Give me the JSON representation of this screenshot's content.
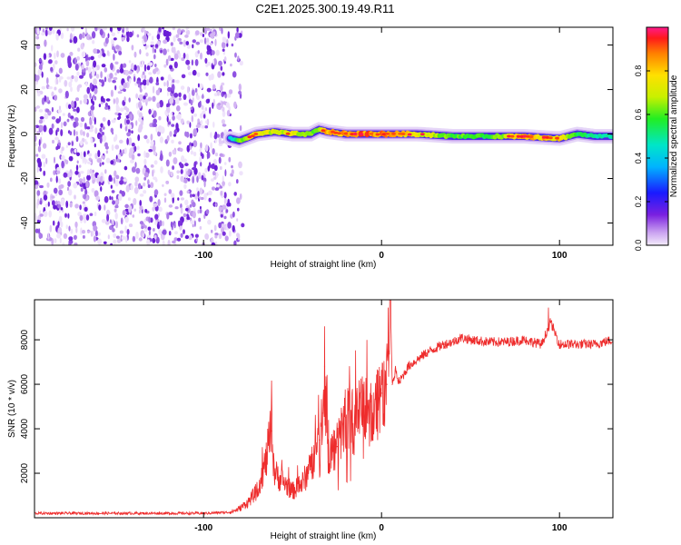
{
  "title": "C2E1.2025.300.19.49.R11",
  "chart_data": [
    {
      "type": "heatmap",
      "xlabel": "Height of straight line (km)",
      "ylabel": "Frequency (Hz)",
      "xlim": [
        -195,
        130
      ],
      "ylim": [
        -50,
        48
      ],
      "xticks": [
        -100,
        0,
        100
      ],
      "yticks": [
        -40,
        -20,
        0,
        20,
        40
      ],
      "colorbar": {
        "label": "Normalized spectral amplitude",
        "ticks": [
          "0.0",
          "0.2",
          "0.4",
          "0.6",
          "0.8"
        ],
        "range": [
          0,
          1
        ]
      },
      "noise_region_x": [
        -195,
        -82
      ],
      "signal_trace": {
        "x": [
          -85,
          -80,
          -70,
          -60,
          -50,
          -40,
          -35,
          -30,
          -20,
          -10,
          0,
          10,
          20,
          40,
          60,
          80,
          100,
          110,
          120,
          130
        ],
        "freq": [
          -2,
          -3,
          0,
          1,
          0,
          0,
          2,
          1,
          0,
          0,
          0,
          0,
          0,
          -1,
          -1,
          -1,
          -2,
          0,
          -1,
          -1
        ],
        "amplitude": [
          0.3,
          0.6,
          0.9,
          0.7,
          0.8,
          0.6,
          0.7,
          0.95,
          0.95,
          1.0,
          1.0,
          0.95,
          0.8,
          0.6,
          0.55,
          0.9,
          0.85,
          0.5,
          0.45,
          0.4
        ]
      }
    },
    {
      "type": "line",
      "xlabel": "Height of straight line (km)",
      "ylabel": "SNR (10 * v/v)",
      "xlim": [
        -195,
        130
      ],
      "ylim": [
        0,
        9800
      ],
      "xticks": [
        -100,
        0,
        100
      ],
      "yticks": [
        2000,
        4000,
        6000,
        8000
      ],
      "color": "#ee2c2c",
      "series": [
        {
          "name": "SNR",
          "x": [
            -195,
            -150,
            -100,
            -85,
            -80,
            -75,
            -70,
            -65,
            -62,
            -60,
            -55,
            -50,
            -45,
            -40,
            -35,
            -33,
            -32,
            -30,
            -28,
            -25,
            -20,
            -15,
            -10,
            -5,
            -2,
            0,
            3,
            5,
            6,
            8,
            10,
            15,
            20,
            25,
            30,
            35,
            40,
            45,
            50,
            60,
            70,
            80,
            90,
            95,
            100,
            110,
            120,
            130
          ],
          "y": [
            200,
            200,
            200,
            250,
            400,
            700,
            1200,
            2500,
            3900,
            2000,
            1600,
            1200,
            1500,
            2200,
            3500,
            4700,
            6800,
            2500,
            3000,
            3200,
            4500,
            4300,
            5000,
            4700,
            5400,
            5600,
            6000,
            9800,
            6000,
            6600,
            6100,
            6800,
            7100,
            7400,
            7600,
            7800,
            7900,
            8100,
            8000,
            7900,
            7900,
            8000,
            7800,
            8800,
            7800,
            7800,
            7800,
            8000
          ]
        }
      ]
    }
  ]
}
